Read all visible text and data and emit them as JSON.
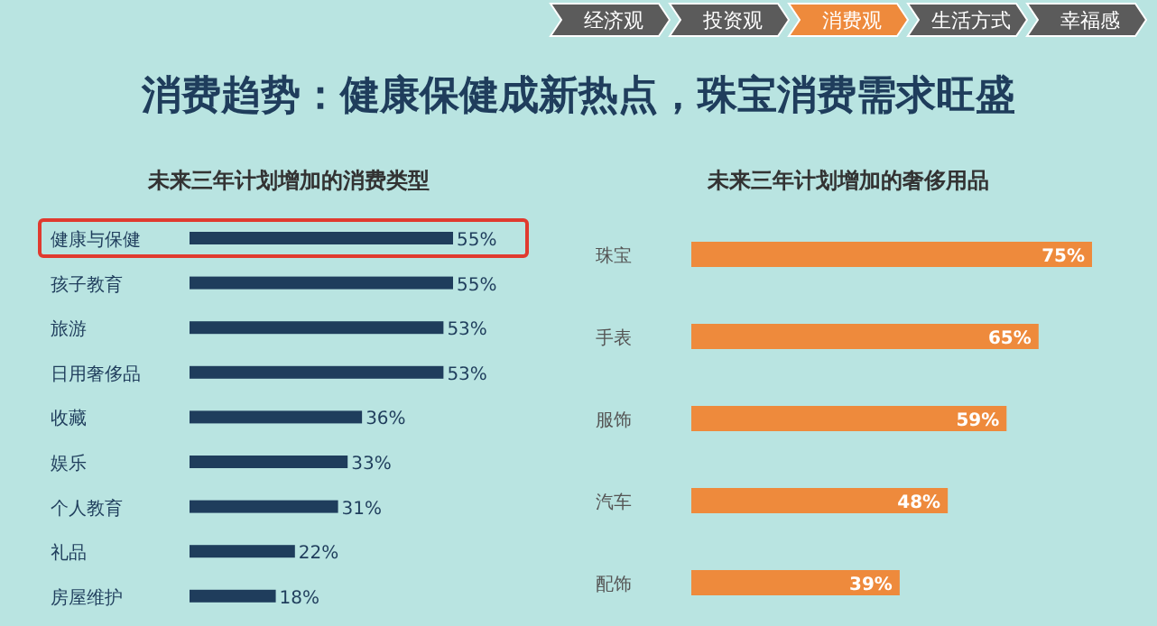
{
  "chart_data": [
    {
      "type": "other",
      "title": "消费趋势：健康保健成新热点，珠宝消费需求旺盛",
      "annotations": [
        "经济观",
        "投资观",
        "消费观",
        "生活方式",
        "幸福感"
      ]
    },
    {
      "type": "bar",
      "orientation": "horizontal",
      "title": "未来三年计划增加的消费类型",
      "categories": [
        "健康与保健",
        "孩子教育",
        "旅游",
        "日用奢侈品",
        "收藏",
        "娱乐",
        "个人教育",
        "礼品",
        "房屋维护"
      ],
      "values": [
        55,
        55,
        53,
        53,
        36,
        33,
        31,
        22,
        18
      ],
      "value_labels": [
        "55%",
        "55%",
        "53%",
        "53%",
        "36%",
        "33%",
        "31%",
        "22%",
        "18%"
      ],
      "color": "#1f3d5c"
    },
    {
      "type": "bar",
      "orientation": "horizontal",
      "title": "未来三年计划增加的奢侈用品",
      "categories": [
        "珠宝",
        "手表",
        "服饰",
        "汽车",
        "配饰"
      ],
      "values": [
        75,
        65,
        59,
        48,
        39
      ],
      "value_labels": [
        "75%",
        "65%",
        "59%",
        "48%",
        "39%"
      ],
      "color": "#ee8a3c"
    }
  ]
}
